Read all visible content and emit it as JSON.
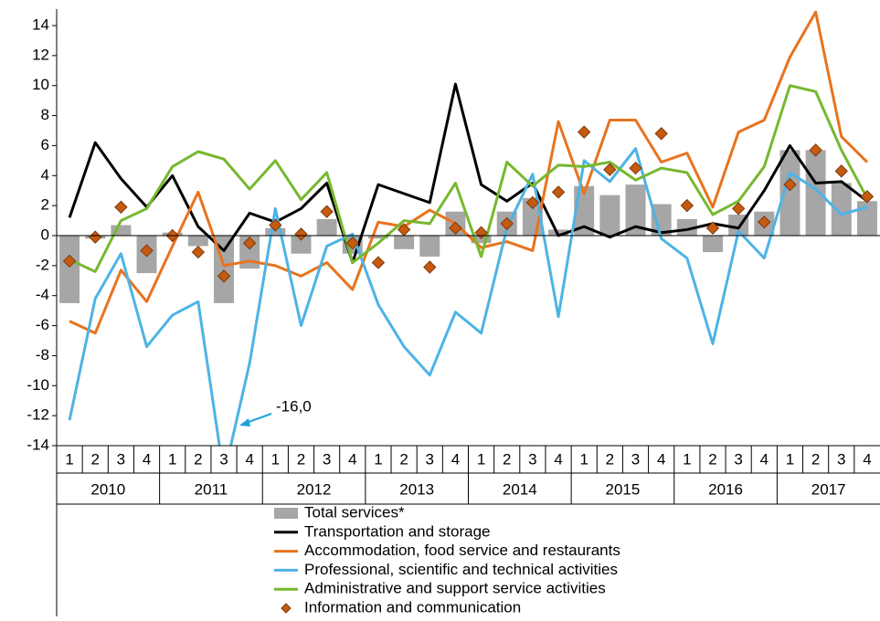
{
  "chart_data": {
    "type": "combo",
    "categories": [
      "1",
      "2",
      "3",
      "4",
      "1",
      "2",
      "3",
      "4",
      "1",
      "2",
      "3",
      "4",
      "1",
      "2",
      "3",
      "4",
      "1",
      "2",
      "3",
      "4",
      "1",
      "2",
      "3",
      "4",
      "1",
      "2",
      "3",
      "4",
      "1",
      "2",
      "3",
      "4"
    ],
    "years": [
      "2010",
      "2011",
      "2012",
      "2013",
      "2014",
      "2015",
      "2016",
      "2017"
    ],
    "ylim": [
      -14,
      14
    ],
    "yticks": [
      -14,
      -12,
      -10,
      -8,
      -6,
      -4,
      -2,
      0,
      2,
      4,
      6,
      8,
      10,
      12,
      14
    ],
    "series": [
      {
        "name": "Total services*",
        "kind": "bar",
        "color": "#a6a6a6",
        "values": [
          -4.5,
          -0.2,
          0.7,
          -2.5,
          0.2,
          -0.7,
          -4.5,
          -2.2,
          0.5,
          -1.2,
          1.1,
          -1.2,
          -0.2,
          -0.9,
          -1.4,
          1.6,
          -0.5,
          1.6,
          2.5,
          0.4,
          3.3,
          2.7,
          3.4,
          2.1,
          1.1,
          -1.1,
          1.4,
          1.6,
          5.7,
          5.7,
          3.5,
          2.3
        ]
      },
      {
        "name": "Transportation and storage",
        "kind": "line",
        "color": "#000000",
        "values": [
          1.2,
          6.2,
          3.8,
          1.9,
          4.0,
          0.6,
          -1.0,
          1.5,
          0.9,
          1.8,
          3.5,
          -1.8,
          3.4,
          2.8,
          2.2,
          10.1,
          3.4,
          2.3,
          3.5,
          0.0,
          0.6,
          -0.1,
          0.6,
          0.2,
          0.4,
          0.8,
          0.5,
          3.0,
          6.0,
          3.5,
          3.6,
          2.3
        ]
      },
      {
        "name": "Accommodation, food service and restaurants",
        "kind": "line",
        "color": "#e8731e",
        "values": [
          -5.7,
          -6.5,
          -2.3,
          -4.4,
          -0.7,
          2.9,
          -2.0,
          -1.7,
          -2.0,
          -2.7,
          -1.8,
          -3.6,
          0.9,
          0.6,
          1.7,
          0.8,
          -0.8,
          -0.4,
          -1.0,
          7.6,
          2.8,
          7.7,
          7.7,
          4.9,
          5.5,
          1.9,
          6.9,
          7.7,
          11.9,
          14.9,
          6.6,
          4.9
        ]
      },
      {
        "name": "Professional, scientific and technical activities",
        "kind": "line",
        "color": "#4db3e6",
        "values": [
          -12.3,
          -4.2,
          -1.2,
          -7.4,
          -5.3,
          -4.4,
          -16.0,
          -8.5,
          1.8,
          -6.0,
          -0.7,
          0.1,
          -4.6,
          -7.4,
          -9.3,
          -5.1,
          -6.5,
          0.5,
          4.1,
          -5.4,
          5.0,
          3.6,
          5.8,
          -0.2,
          -1.5,
          -7.2,
          0.3,
          -1.5,
          4.2,
          3.1,
          1.4,
          1.9
        ]
      },
      {
        "name": "Administrative and support service activities",
        "kind": "line",
        "color": "#77b82e",
        "values": [
          -1.6,
          -2.4,
          1.0,
          1.8,
          4.6,
          5.6,
          5.1,
          3.1,
          5.0,
          2.4,
          4.2,
          -1.8,
          -0.5,
          1.0,
          0.8,
          3.5,
          -1.4,
          4.9,
          3.3,
          4.7,
          4.6,
          4.9,
          3.7,
          4.5,
          4.2,
          1.4,
          2.3,
          4.6,
          10.0,
          9.6,
          5.7,
          2.5
        ]
      },
      {
        "name": "Information and communication",
        "kind": "marker",
        "color": "#c55a11",
        "values": [
          -1.7,
          -0.1,
          1.9,
          -1.0,
          0.0,
          -1.1,
          -2.7,
          -0.5,
          0.7,
          0.1,
          1.6,
          -0.5,
          -1.8,
          0.4,
          -2.1,
          0.5,
          0.2,
          0.8,
          2.2,
          2.9,
          6.9,
          4.4,
          4.5,
          6.8,
          2.0,
          0.5,
          1.8,
          0.9,
          3.4,
          5.7,
          4.3,
          2.6
        ]
      }
    ],
    "annotations": [
      {
        "text": "-16,0",
        "color": "#1fa3dc"
      }
    ]
  }
}
